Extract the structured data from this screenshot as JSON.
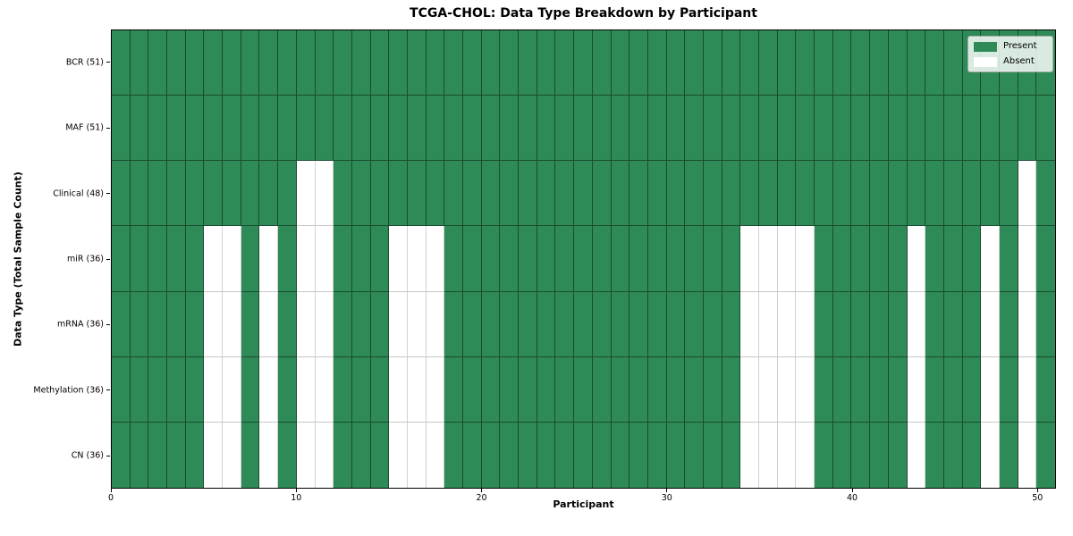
{
  "figure": {
    "title": "TCGA-CHOL: Data Type Breakdown by Participant",
    "xlabel": "Participant",
    "ylabel": "Data Type (Total Sample Count)"
  },
  "legend": {
    "position": "upper-right",
    "items": [
      {
        "label": "Present",
        "color": "#2e8b57"
      },
      {
        "label": "Absent",
        "color": "#ffffff"
      }
    ]
  },
  "chart_data": {
    "type": "heatmap",
    "title": "TCGA-CHOL: Data Type Breakdown by Participant",
    "xlabel": "Participant",
    "ylabel": "Data Type (Total Sample Count)",
    "n_participants": 51,
    "x_range": [
      0,
      51
    ],
    "x_ticks": [
      0,
      10,
      20,
      30,
      40,
      50
    ],
    "grid": true,
    "present_color": "#2e8b57",
    "absent_color": "#ffffff",
    "legend_entries": [
      "Present",
      "Absent"
    ],
    "rows": [
      {
        "label": "BCR (51)",
        "data_type": "BCR",
        "total_samples": 51,
        "absent_participants": []
      },
      {
        "label": "MAF (51)",
        "data_type": "MAF",
        "total_samples": 51,
        "absent_participants": []
      },
      {
        "label": "Clinical (48)",
        "data_type": "Clinical",
        "total_samples": 48,
        "absent_participants": [
          10,
          11,
          49
        ]
      },
      {
        "label": "miR (36)",
        "data_type": "miR",
        "total_samples": 36,
        "absent_participants": [
          5,
          6,
          8,
          10,
          11,
          15,
          16,
          17,
          34,
          35,
          36,
          37,
          43,
          47,
          49
        ]
      },
      {
        "label": "mRNA (36)",
        "data_type": "mRNA",
        "total_samples": 36,
        "absent_participants": [
          5,
          6,
          8,
          10,
          11,
          15,
          16,
          17,
          34,
          35,
          36,
          37,
          43,
          47,
          49
        ]
      },
      {
        "label": "Methylation (36)",
        "data_type": "Methylation",
        "total_samples": 36,
        "absent_participants": [
          5,
          6,
          8,
          10,
          11,
          15,
          16,
          17,
          34,
          35,
          36,
          37,
          43,
          47,
          49
        ]
      },
      {
        "label": "CN (36)",
        "data_type": "CN",
        "total_samples": 36,
        "absent_participants": [
          5,
          6,
          8,
          10,
          11,
          15,
          16,
          17,
          34,
          35,
          36,
          37,
          43,
          47,
          49
        ]
      }
    ]
  }
}
